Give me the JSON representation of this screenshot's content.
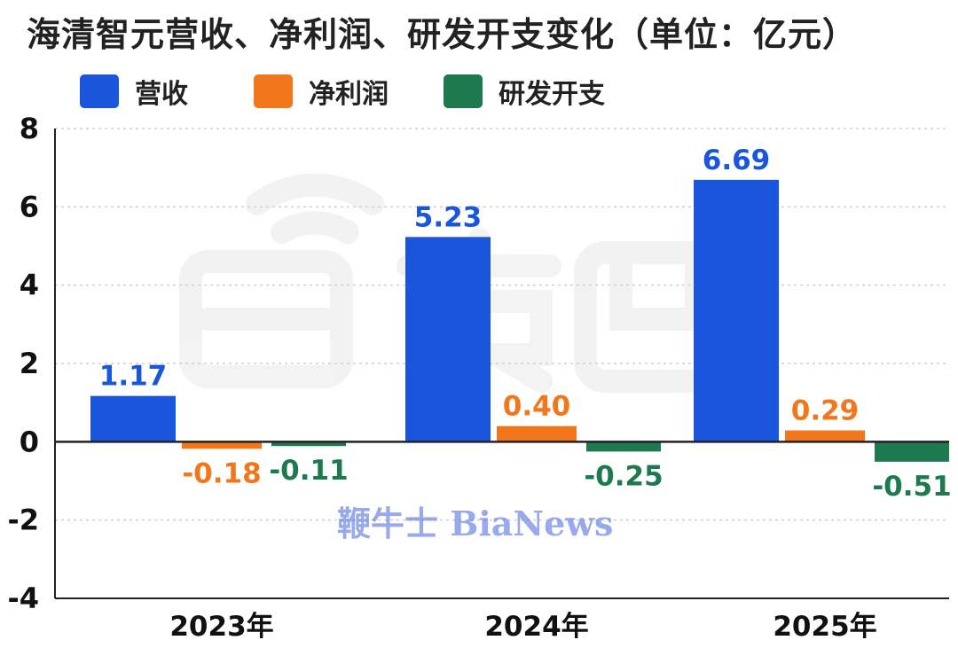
{
  "chart_data": {
    "type": "bar",
    "title": "海清智元营收、净利润、研发开支变化（单位：亿元）",
    "categories": [
      "2023年",
      "2024年",
      "2025年"
    ],
    "series": [
      {
        "name": "营收",
        "color": "#1a56db",
        "values": [
          1.17,
          5.23,
          6.69
        ],
        "labels": [
          "1.17",
          "5.23",
          "6.69"
        ]
      },
      {
        "name": "净利润",
        "color": "#f2761a",
        "values": [
          -0.18,
          0.4,
          0.29
        ],
        "labels": [
          "-0.18",
          "0.40",
          "0.29"
        ]
      },
      {
        "name": "研发开支",
        "color": "#1d7a4e",
        "values": [
          -0.11,
          -0.25,
          -0.51
        ],
        "labels": [
          "-0.11",
          "-0.25",
          "-0.51"
        ]
      }
    ],
    "ylim": [
      -4,
      8
    ],
    "yticks": [
      "8",
      "6",
      "4",
      "2",
      "0",
      "-2",
      "-4"
    ],
    "ytick_values": [
      8,
      6,
      4,
      2,
      0,
      -2,
      -4
    ],
    "grid": true,
    "legend_position": "top-left",
    "xlabel": "",
    "ylabel": ""
  },
  "watermark": {
    "text": "鞭牛士 BiaNews",
    "logo_text": "智东西"
  }
}
